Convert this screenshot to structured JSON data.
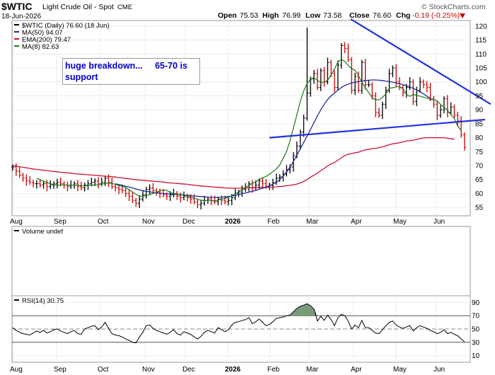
{
  "header": {
    "symbol": "$WTIC",
    "name": "Light Crude Oil - Spot",
    "exchange": "CME",
    "date": "18-Jun-2026",
    "open_label": "Open",
    "open": "75.53",
    "high_label": "High",
    "high": "76.99",
    "low_label": "Low",
    "low": "73.58",
    "close_label": "Close",
    "close": "76.60",
    "chg_label": "Chg",
    "chg": "-0.19 (-0.25%)",
    "brand": "© StockCharts.com"
  },
  "legend": {
    "price": "$WTIC (Daily) 76.60 (18 Jun)",
    "ma50": "MA(50) 94.07",
    "ema200": "EMA(200) 79.47",
    "ma8": "MA(8) 82.63"
  },
  "annotation": "huge breakdown...     65-70 is support",
  "volume_label": "Volume undef",
  "rsi_label": "RSI(14) 30.75",
  "colors": {
    "price_up": "#000000",
    "price_down": "#cc0000",
    "ma50": "#1f2a99",
    "ema200": "#cc1133",
    "ma8": "#1a7a1a",
    "trendline": "#2233dd",
    "annotation_text": "#0000cc",
    "rsi_fill": "#7a9a7a",
    "chg_down": "#cc0000"
  },
  "chart_data": {
    "type": "line",
    "title": "$WTIC Light Crude Oil - Spot CME",
    "x_tick_labels": [
      "Aug",
      "Sep",
      "Oct",
      "Nov",
      "Dec",
      "2026",
      "Feb",
      "Mar",
      "Apr",
      "May",
      "Jun"
    ],
    "price_axis": {
      "ticks": [
        55,
        60,
        65,
        70,
        75,
        80,
        85,
        90,
        95,
        100,
        105,
        110,
        115,
        120
      ],
      "range": [
        52,
        122
      ]
    },
    "rsi_axis": {
      "ticks": [
        10,
        30,
        50,
        70,
        90
      ],
      "range": [
        0,
        100
      ]
    },
    "series": [
      {
        "name": "$WTIC (Daily)",
        "kind": "price",
        "values": [
          69.5,
          68,
          66.5,
          65.5,
          64.5,
          64,
          63.5,
          63.5,
          63,
          63.5,
          62.5,
          63,
          63.5,
          64,
          63.5,
          63,
          62.5,
          63,
          63.5,
          62.5,
          62,
          63,
          63.5,
          64,
          64.5,
          63.5,
          64,
          65.5,
          64,
          62.5,
          62,
          61.5,
          61,
          60,
          59,
          57.5,
          56.5,
          58,
          59.5,
          61.5,
          62,
          61,
          60.5,
          60,
          59.5,
          59,
          59.5,
          60,
          59,
          58.5,
          59,
          58.5,
          58,
          57,
          56,
          56.5,
          57.5,
          58,
          57.5,
          57,
          58,
          57.5,
          57,
          57.5,
          58.5,
          60,
          60.5,
          61.5,
          62,
          63.5,
          62,
          63,
          64.5,
          63.5,
          62.5,
          63,
          64,
          65.5,
          66,
          67,
          68.5,
          69.5,
          73.5,
          77,
          82,
          87,
          96,
          101,
          103,
          98,
          104,
          100,
          107,
          103,
          98,
          106,
          113,
          112,
          108,
          97,
          102,
          97,
          107,
          99,
          99,
          95,
          89,
          88,
          92,
          97,
          103,
          105,
          100,
          98,
          96,
          98,
          100,
          93,
          97,
          100,
          99,
          98,
          94,
          92,
          88,
          90,
          94,
          89,
          91,
          88,
          86,
          81,
          76.6
        ]
      },
      {
        "name": "MA(50)",
        "values": [
          null,
          null,
          null,
          null,
          null,
          null,
          null,
          null,
          null,
          null,
          null,
          null,
          null,
          null,
          null,
          null,
          null,
          null,
          null,
          null,
          null,
          null,
          null,
          null,
          null,
          null,
          null,
          null,
          null,
          null,
          63.5,
          63.2,
          62.9,
          62.6,
          62.3,
          62,
          61.6,
          61.3,
          61,
          60.8,
          60.6,
          60.4,
          60.2,
          60.1,
          60,
          59.9,
          59.8,
          59.7,
          59.6,
          59.5,
          59.4,
          59.3,
          59.2,
          59.1,
          59,
          58.9,
          58.8,
          58.7,
          58.6,
          58.6,
          58.6,
          58.7,
          58.8,
          58.9,
          59.1,
          59.3,
          59.6,
          59.9,
          60.2,
          60.5,
          60.8,
          61.1,
          61.5,
          61.9,
          62.3,
          62.8,
          63.3,
          64,
          65,
          66.2,
          67.7,
          69.5,
          71.5,
          73.7,
          76,
          78.3,
          80.6,
          83,
          85.4,
          87.8,
          90,
          92,
          93.7,
          95,
          96,
          97,
          98,
          98.7,
          99.2,
          99.6,
          99.9,
          100.1,
          100.3,
          100.5,
          100.6,
          100.7,
          100.7,
          100.6,
          100.5,
          100.3,
          100.1,
          99.9,
          99.6,
          99.3,
          99,
          98.6,
          98.2,
          97.7,
          97.1,
          96.4,
          95.7,
          94.9,
          94.07
        ]
      },
      {
        "name": "EMA(200)",
        "values": [
          70,
          69.8,
          69.6,
          69.4,
          69.2,
          69,
          68.8,
          68.6,
          68.5,
          68.3,
          68.2,
          68,
          67.9,
          67.8,
          67.6,
          67.5,
          67.4,
          67.3,
          67.1,
          67,
          66.9,
          66.8,
          66.7,
          66.6,
          66.5,
          66.4,
          66.3,
          66.2,
          66.1,
          66,
          65.9,
          65.7,
          65.6,
          65.4,
          65.3,
          65.1,
          64.9,
          64.8,
          64.7,
          64.6,
          64.5,
          64.4,
          64.3,
          64.2,
          64.1,
          63.9,
          63.8,
          63.7,
          63.6,
          63.5,
          63.4,
          63.3,
          63.1,
          63,
          62.8,
          62.7,
          62.6,
          62.5,
          62.4,
          62.3,
          62.2,
          62.1,
          62,
          61.9,
          61.9,
          61.9,
          61.9,
          62,
          62,
          62.1,
          62.1,
          62.1,
          62.2,
          62.2,
          62.2,
          62.3,
          62.3,
          62.4,
          62.5,
          62.6,
          62.8,
          62.9,
          63.1,
          63.4,
          63.8,
          64.3,
          65,
          65.8,
          66.6,
          67.3,
          68.2,
          69,
          69.9,
          70.6,
          71.1,
          71.9,
          72.8,
          73.6,
          74.1,
          74.3,
          74.6,
          74.8,
          75.3,
          75.6,
          75.8,
          76.1,
          76.2,
          76.4,
          76.7,
          77.1,
          77.5,
          77.8,
          78,
          78.2,
          78.5,
          78.8,
          78.9,
          79.1,
          79.4,
          79.7,
          79.9,
          80,
          80,
          80,
          80,
          80,
          80,
          79.8,
          79.6,
          79.47
        ]
      },
      {
        "name": "MA(8)",
        "values": [
          null,
          null,
          null,
          null,
          null,
          null,
          null,
          65.5,
          64.9,
          64.4,
          63.9,
          63.5,
          63.2,
          63,
          63,
          63.1,
          63,
          63,
          62.9,
          63,
          62.8,
          62.7,
          62.9,
          63,
          63,
          63.1,
          63.4,
          63.6,
          63.7,
          63.6,
          63.3,
          62.9,
          62.6,
          62.1,
          61.4,
          60.5,
          59.7,
          59.1,
          59,
          59.2,
          59.6,
          60,
          60.5,
          61,
          61.2,
          61.1,
          60.4,
          59.9,
          59.7,
          59.6,
          59.5,
          59,
          58.7,
          58.4,
          57.9,
          57.6,
          57.4,
          57.5,
          57.4,
          57.3,
          57.6,
          57.9,
          58.3,
          58.6,
          59.2,
          59.9,
          60.6,
          61.5,
          62.2,
          62.9,
          63.6,
          64.2,
          65,
          65.6,
          66.1,
          66.9,
          67.8,
          68.8,
          70.2,
          72.6,
          75.1,
          78.9,
          83.5,
          88.2,
          92.9,
          96.8,
          99.4,
          101,
          101.6,
          100.6,
          99.8,
          99.9,
          100.6,
          102.5,
          104.6,
          107.2,
          108.1,
          107.3,
          105.9,
          104.7,
          104.2,
          102.3,
          99.9,
          97.9,
          96.1,
          94.4,
          93.6,
          93.6,
          94.4,
          95.7,
          97.7,
          97.9,
          98.2,
          98.3,
          97.5,
          95.6,
          94.8,
          95.5,
          95.2,
          94.9,
          94.5,
          94.2,
          93.6,
          93.7,
          93.1,
          91.9,
          90.9,
          89.8,
          88.3,
          86.9,
          84.1,
          82.63
        ]
      },
      {
        "name": "RSI(14)",
        "kind": "oscillator",
        "values": [
          52,
          48,
          45,
          43,
          42,
          41,
          44,
          47,
          45,
          48,
          44,
          46,
          49,
          50,
          47,
          45,
          43,
          46,
          48,
          43,
          42,
          50,
          52,
          54,
          55,
          49,
          53,
          60,
          51,
          43,
          41,
          40,
          38,
          35,
          33,
          30,
          29,
          38,
          45,
          55,
          56,
          51,
          48,
          46,
          44,
          42,
          45,
          49,
          43,
          41,
          46,
          44,
          42,
          38,
          35,
          39,
          45,
          48,
          46,
          44,
          52,
          49,
          46,
          49,
          56,
          60,
          61,
          63,
          64,
          67,
          58,
          61,
          65,
          60,
          55,
          57,
          61,
          66,
          67,
          68,
          70,
          71,
          76,
          81,
          84,
          86,
          88,
          85,
          80,
          62,
          69,
          63,
          71,
          64,
          55,
          67,
          72,
          70,
          62,
          50,
          56,
          52,
          63,
          52,
          52,
          48,
          44,
          43,
          49,
          55,
          60,
          62,
          56,
          53,
          51,
          53,
          55,
          47,
          52,
          55,
          53,
          51,
          48,
          46,
          43,
          45,
          49,
          43,
          45,
          42,
          40,
          35,
          30.75
        ]
      }
    ],
    "trendlines": [
      {
        "points": [
          [
            80,
            "Feb"
          ],
          [
            86,
            "end"
          ]
        ]
      },
      {
        "points": [
          [
            122,
            "Apr"
          ],
          [
            92,
            "end"
          ]
        ]
      }
    ]
  }
}
